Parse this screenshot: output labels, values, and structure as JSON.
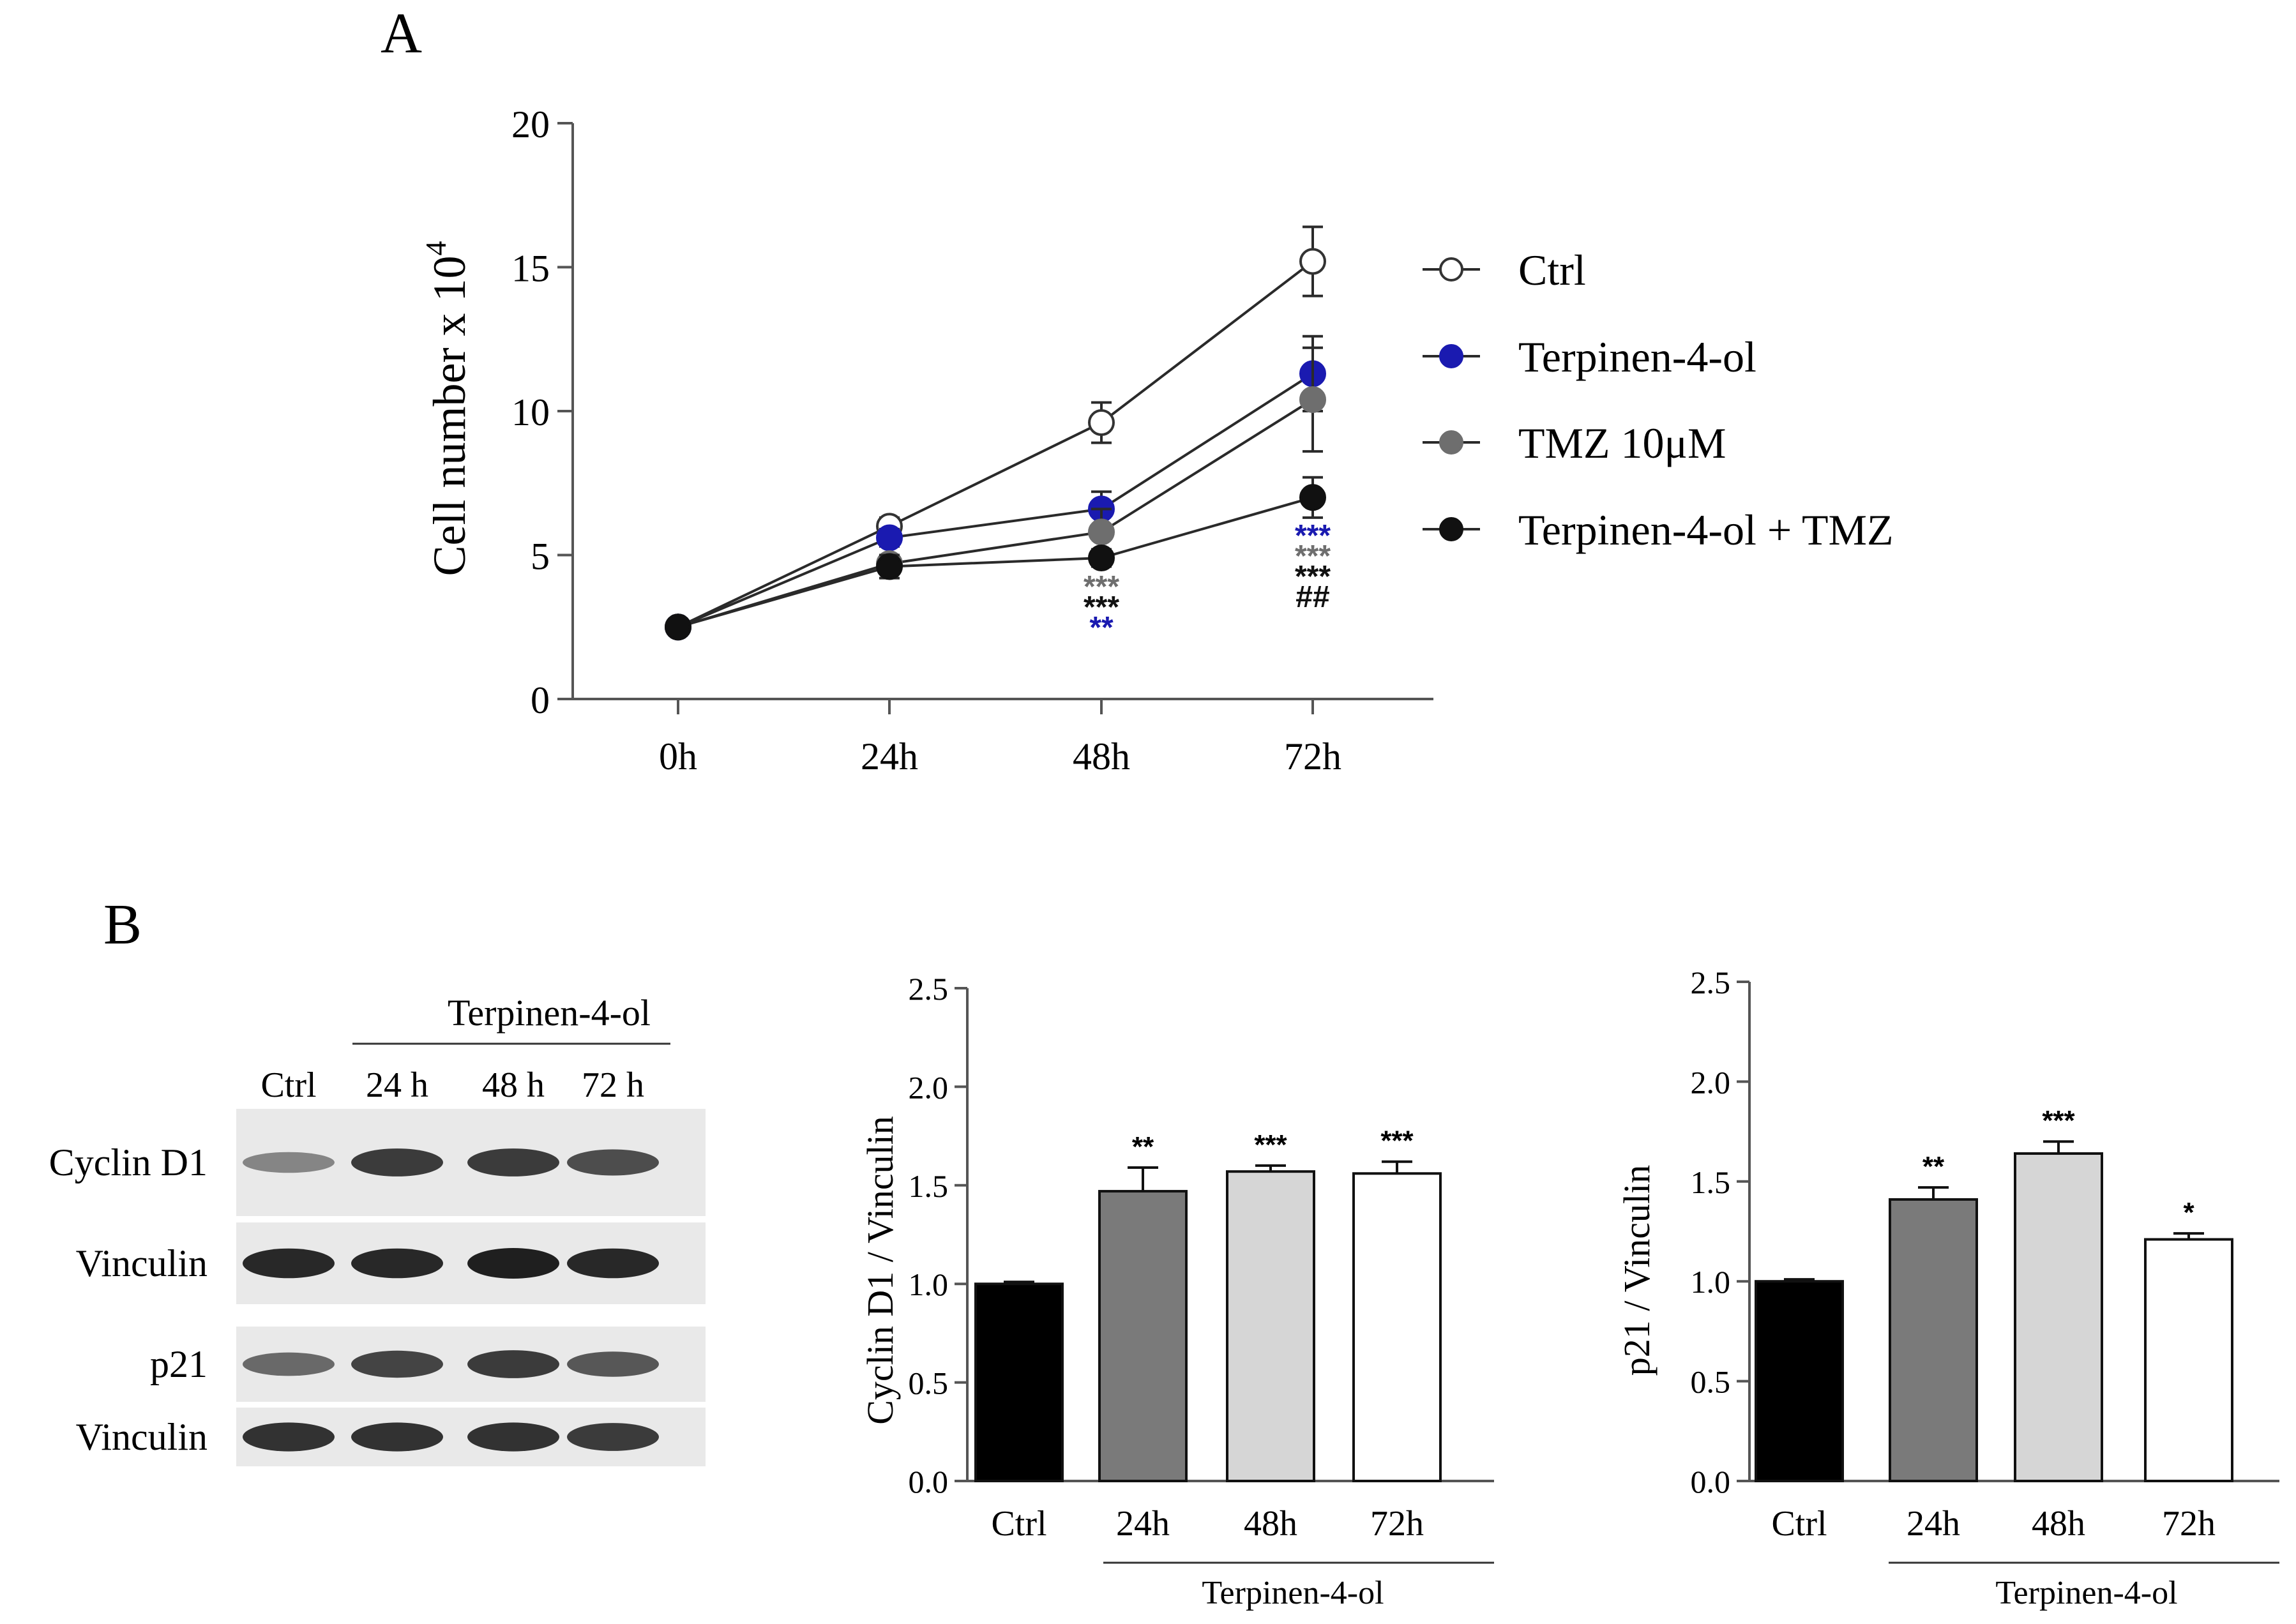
{
  "panels": {
    "a": "A",
    "b": "B"
  },
  "colors": {
    "ctrl": "#ffffff",
    "terpinen": "#1a1ab0",
    "tmz": "#6e6e6e",
    "combo": "#111111",
    "bar_ctrl": "#000000",
    "bar_24h": "#7a7a7a",
    "bar_48h": "#d6d6d6",
    "bar_72h": "#ffffff"
  },
  "chart_data": [
    {
      "type": "line",
      "title": "",
      "xlabel": "",
      "ylabel": "Cell number x 10",
      "ylabel_sup": "4",
      "categories": [
        "0h",
        "24h",
        "48h",
        "72h"
      ],
      "ylim": [
        0,
        20
      ],
      "yticks": [
        "0",
        "5",
        "10",
        "15",
        "20"
      ],
      "legend_position": "right",
      "series": [
        {
          "name": "Ctrl",
          "key": "ctrl",
          "values": [
            2.5,
            6.0,
            9.6,
            15.2
          ],
          "err": [
            0,
            0.3,
            0.7,
            1.2
          ]
        },
        {
          "name": "Terpinen-4-ol",
          "key": "terpinen",
          "values": [
            2.5,
            5.6,
            6.6,
            11.3
          ],
          "err": [
            0,
            0.3,
            0.6,
            1.3
          ]
        },
        {
          "name": "TMZ 10μM",
          "key": "tmz",
          "values": [
            2.5,
            4.7,
            5.8,
            10.4
          ],
          "err": [
            0,
            0.3,
            0.8,
            1.8
          ]
        },
        {
          "name": "Terpinen-4-ol + TMZ",
          "key": "combo",
          "values": [
            2.5,
            4.6,
            4.9,
            7.0
          ],
          "err": [
            0,
            0.4,
            0.3,
            0.7
          ]
        }
      ],
      "annotations": [
        {
          "category": "48h",
          "lines": [
            {
              "text": "***",
              "color": "tmz"
            },
            {
              "text": "***",
              "color": "combo"
            },
            {
              "text": "**",
              "color": "terpinen"
            }
          ]
        },
        {
          "category": "72h",
          "lines": [
            {
              "text": "***",
              "color": "terpinen"
            },
            {
              "text": "***",
              "color": "tmz"
            },
            {
              "text": "***",
              "color": "combo"
            },
            {
              "text": "##",
              "color": "combo"
            }
          ]
        }
      ]
    },
    {
      "type": "bar",
      "title": "",
      "xlabel": "Terpinen-4-ol",
      "ylabel": "Cyclin D1 / Vinculin",
      "categories": [
        "Ctrl",
        "24h",
        "48h",
        "72h"
      ],
      "values": [
        1.0,
        1.47,
        1.57,
        1.56
      ],
      "err": [
        0.01,
        0.12,
        0.03,
        0.06
      ],
      "sig": [
        "",
        "**",
        "***",
        "***"
      ],
      "ylim": [
        0,
        2.5
      ],
      "yticks": [
        "0.0",
        "0.5",
        "1.0",
        "1.5",
        "2.0",
        "2.5"
      ]
    },
    {
      "type": "bar",
      "title": "",
      "xlabel": "Terpinen-4-ol",
      "ylabel": "p21 / Vinculin",
      "categories": [
        "Ctrl",
        "24h",
        "48h",
        "72h"
      ],
      "values": [
        1.0,
        1.41,
        1.64,
        1.21
      ],
      "err": [
        0.01,
        0.06,
        0.06,
        0.03
      ],
      "sig": [
        "",
        "**",
        "***",
        "*"
      ],
      "ylim": [
        0,
        2.5
      ],
      "yticks": [
        "0.0",
        "0.5",
        "1.0",
        "1.5",
        "2.0",
        "2.5"
      ]
    }
  ],
  "blot": {
    "group_label": "Terpinen-4-ol",
    "lanes": [
      "Ctrl",
      "24 h",
      "48 h",
      "72 h"
    ],
    "rows": [
      {
        "label": "Cyclin D1",
        "intensity": [
          0.45,
          0.85,
          0.85,
          0.75
        ]
      },
      {
        "label": "Vinculin",
        "intensity": [
          0.95,
          0.95,
          1.0,
          0.95
        ]
      },
      {
        "label": "p21",
        "intensity": [
          0.6,
          0.8,
          0.85,
          0.7
        ]
      },
      {
        "label": "Vinculin",
        "intensity": [
          0.9,
          0.9,
          0.9,
          0.85
        ]
      }
    ]
  }
}
